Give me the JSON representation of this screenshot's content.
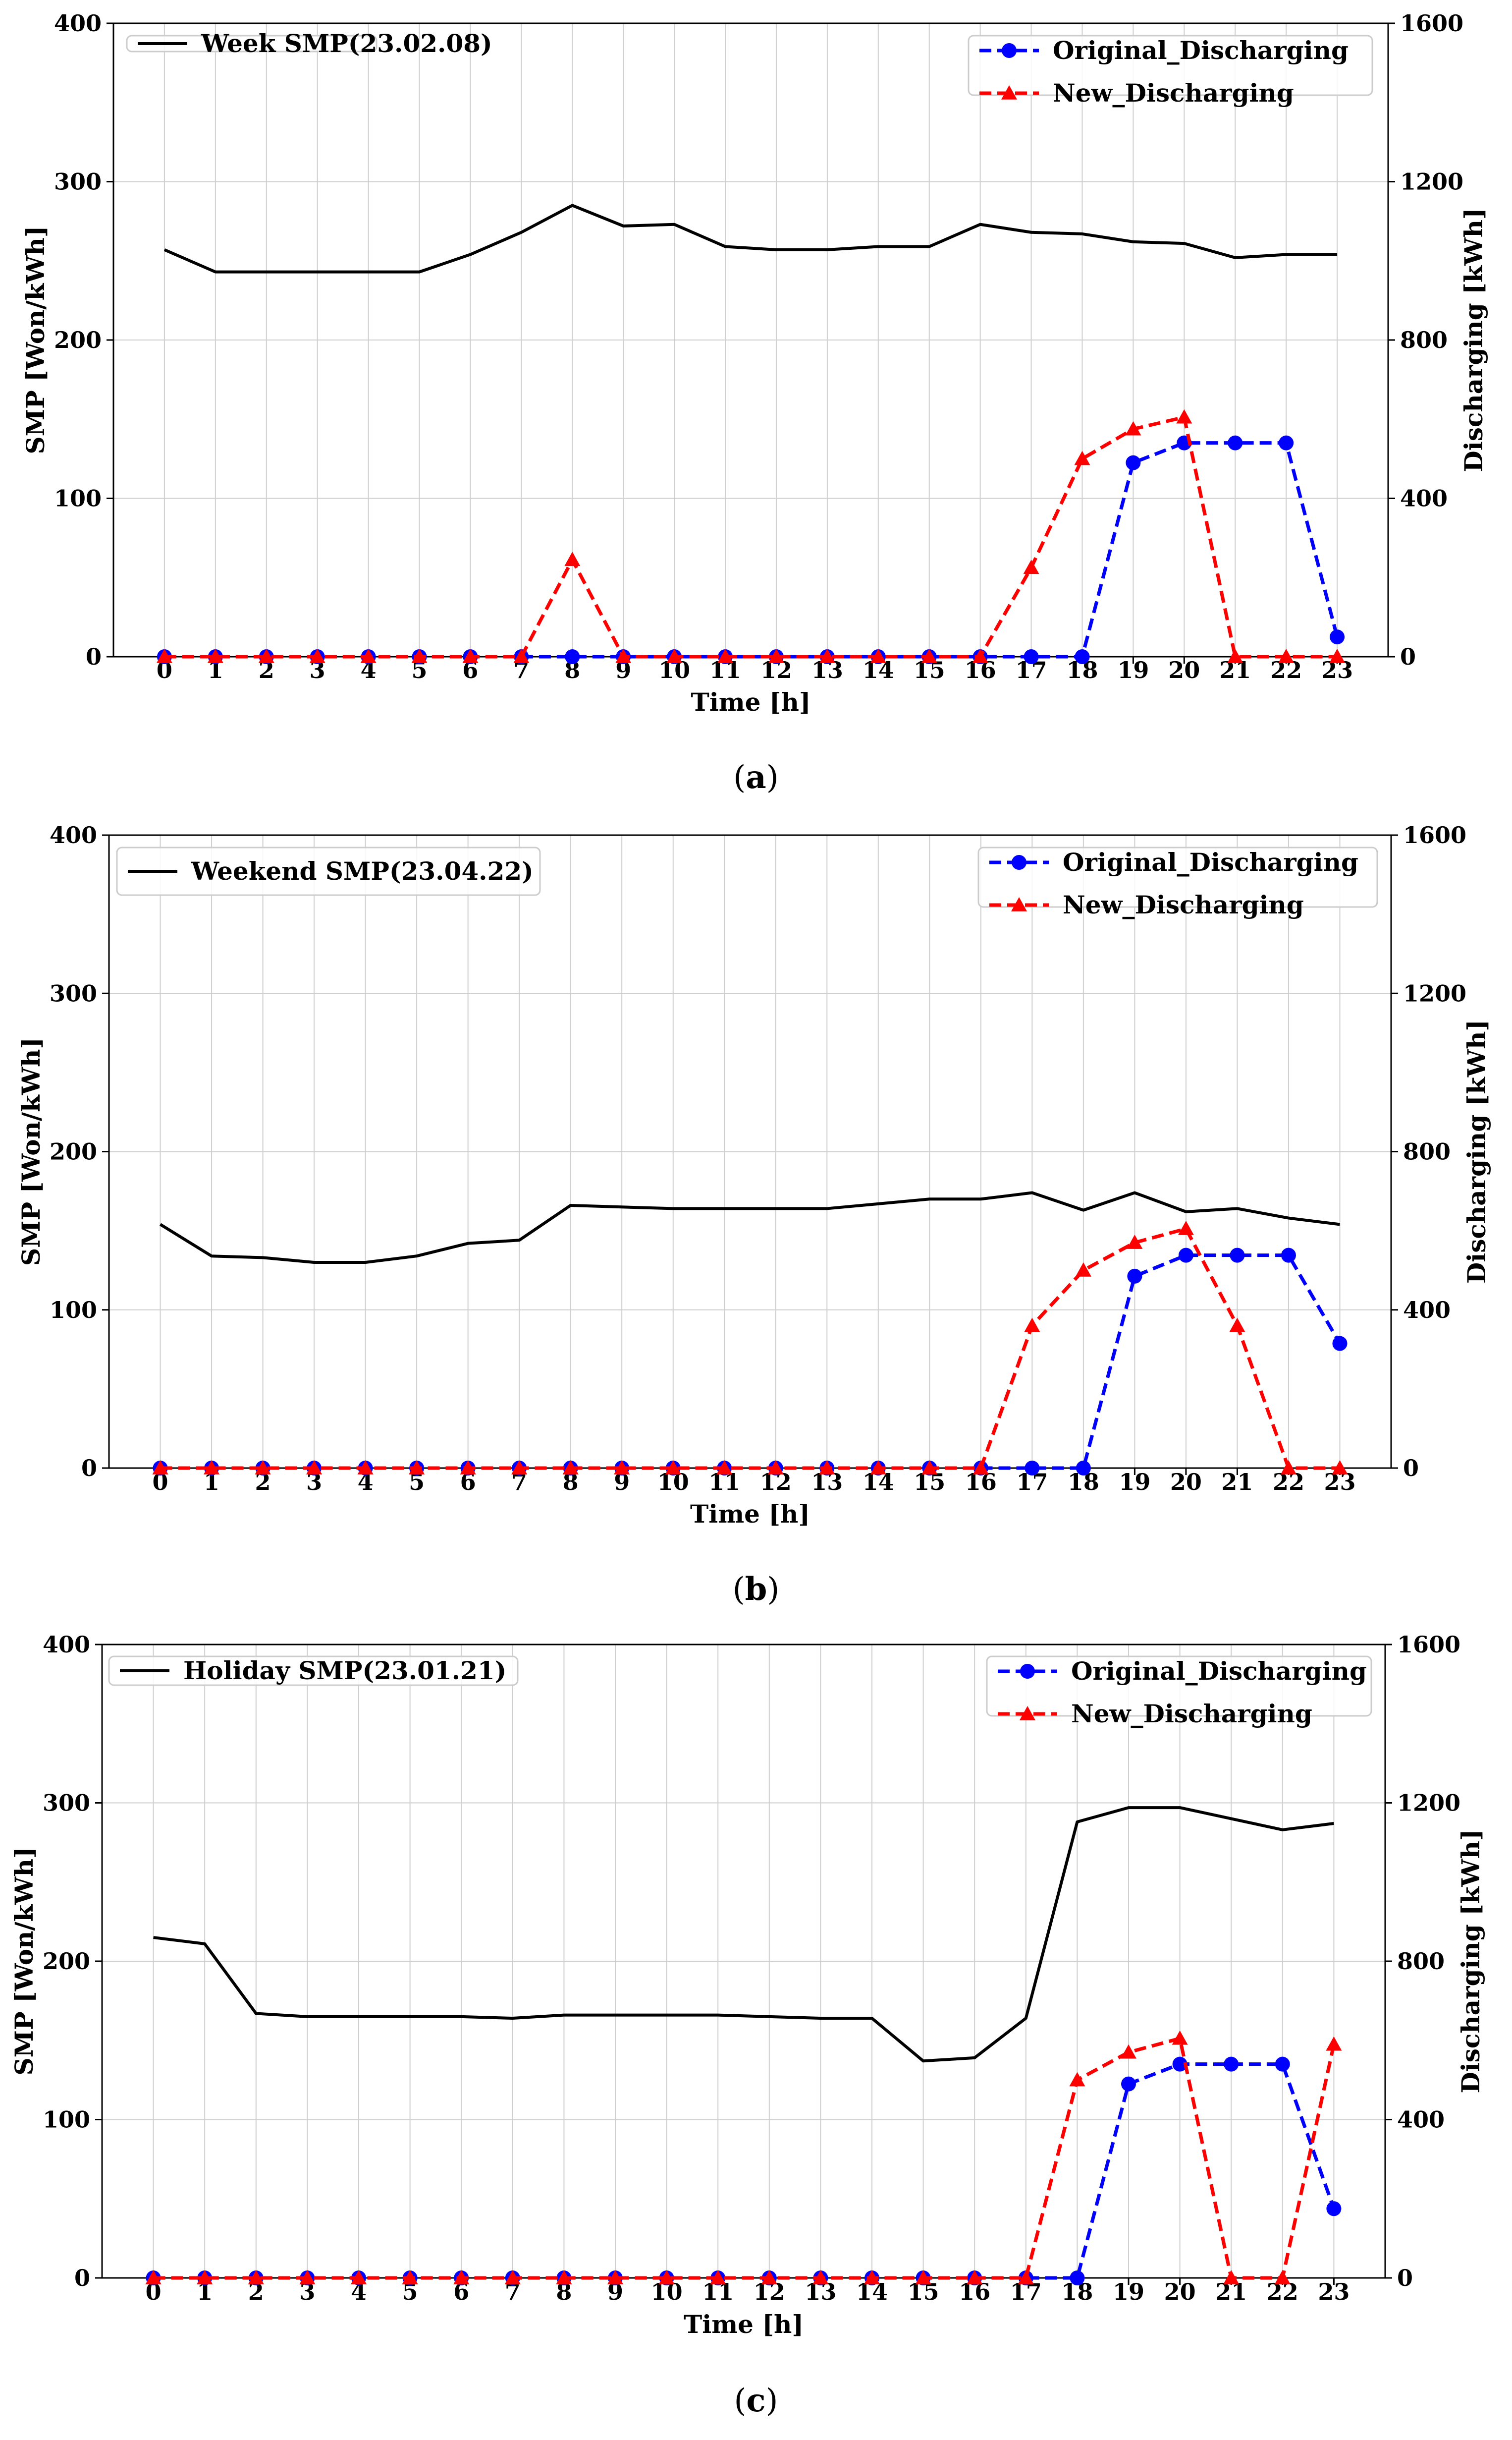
{
  "chart_data": [
    {
      "panel": "(a)",
      "caption_letter": "a",
      "type": "line",
      "x_label": "Time [h]",
      "y_label_left": "SMP [Won/kWh]",
      "y_label_right": "Discharging [kWh]",
      "y_left_range": [
        0,
        400
      ],
      "y_right_range": [
        0,
        1600
      ],
      "y_left_ticks": [
        "0",
        "100",
        "200",
        "300",
        "400"
      ],
      "y_right_ticks": [
        "0",
        "400",
        "800",
        "1200",
        "1600"
      ],
      "x_ticks": [
        "0",
        "1",
        "2",
        "3",
        "4",
        "5",
        "6",
        "7",
        "8",
        "9",
        "10",
        "11",
        "12",
        "13",
        "14",
        "15",
        "16",
        "17",
        "18",
        "19",
        "20",
        "21",
        "22",
        "23"
      ],
      "series": [
        {
          "name": "Week SMP(23.02.08)",
          "axis": "left",
          "color": "#000000",
          "style": "solid",
          "values": [
            257,
            243,
            243,
            243,
            243,
            243,
            254,
            268,
            285,
            272,
            273,
            259,
            257,
            257,
            259,
            259,
            273,
            268,
            267,
            262,
            261,
            252,
            254,
            254
          ]
        },
        {
          "name": "Original_Discharging",
          "axis": "right",
          "color": "#0000ff",
          "style": "dashed",
          "marker": "circle",
          "values": [
            0,
            0,
            0,
            0,
            0,
            0,
            0,
            0,
            0,
            0,
            0,
            0,
            0,
            0,
            0,
            0,
            0,
            0,
            0,
            490,
            540,
            540,
            540,
            50
          ]
        },
        {
          "name": "New_Discharging",
          "axis": "right",
          "color": "#ff0000",
          "style": "dashed",
          "marker": "triangle",
          "values": [
            0,
            0,
            0,
            0,
            0,
            0,
            0,
            0,
            245,
            0,
            0,
            0,
            0,
            0,
            0,
            0,
            0,
            225,
            500,
            575,
            605,
            0,
            0,
            0
          ]
        }
      ]
    },
    {
      "panel": "(b)",
      "caption_letter": "b",
      "type": "line",
      "x_label": "Time [h]",
      "y_label_left": "SMP [Won/kWh]",
      "y_label_right": "Discharging [kWh]",
      "y_left_range": [
        0,
        400
      ],
      "y_right_range": [
        0,
        1600
      ],
      "y_left_ticks": [
        "0",
        "100",
        "200",
        "300",
        "400"
      ],
      "y_right_ticks": [
        "0",
        "400",
        "800",
        "1200",
        "1600"
      ],
      "x_ticks": [
        "0",
        "1",
        "2",
        "3",
        "4",
        "5",
        "6",
        "7",
        "8",
        "9",
        "10",
        "11",
        "12",
        "13",
        "14",
        "15",
        "16",
        "17",
        "18",
        "19",
        "20",
        "21",
        "22",
        "23"
      ],
      "series": [
        {
          "name": "Weekend SMP(23.04.22)",
          "axis": "left",
          "color": "#000000",
          "style": "solid",
          "values": [
            154,
            134,
            133,
            130,
            130,
            134,
            142,
            144,
            166,
            165,
            164,
            164,
            164,
            164,
            167,
            170,
            170,
            174,
            163,
            174,
            162,
            164,
            158,
            154
          ]
        },
        {
          "name": "Original_Discharging",
          "axis": "right",
          "color": "#0000ff",
          "style": "dashed",
          "marker": "circle",
          "values": [
            0,
            0,
            0,
            0,
            0,
            0,
            0,
            0,
            0,
            0,
            0,
            0,
            0,
            0,
            0,
            0,
            0,
            0,
            0,
            485,
            538,
            538,
            538,
            315
          ]
        },
        {
          "name": "New_Discharging",
          "axis": "right",
          "color": "#ff0000",
          "style": "dashed",
          "marker": "triangle",
          "values": [
            0,
            0,
            0,
            0,
            0,
            0,
            0,
            0,
            0,
            0,
            0,
            0,
            0,
            0,
            0,
            0,
            0,
            360,
            500,
            570,
            605,
            360,
            0,
            0
          ]
        }
      ]
    },
    {
      "panel": "(c)",
      "caption_letter": "c",
      "type": "line",
      "x_label": "Time [h]",
      "y_label_left": "SMP [Won/kWh]",
      "y_label_right": "Discharging [kWh]",
      "y_left_range": [
        0,
        400
      ],
      "y_right_range": [
        0,
        1600
      ],
      "y_left_ticks": [
        "0",
        "100",
        "200",
        "300",
        "400"
      ],
      "y_right_ticks": [
        "0",
        "400",
        "800",
        "1200",
        "1600"
      ],
      "x_ticks": [
        "0",
        "1",
        "2",
        "3",
        "4",
        "5",
        "6",
        "7",
        "8",
        "9",
        "10",
        "11",
        "12",
        "13",
        "14",
        "15",
        "16",
        "17",
        "18",
        "19",
        "20",
        "21",
        "22",
        "23"
      ],
      "series": [
        {
          "name": "Holiday SMP(23.01.21)",
          "axis": "left",
          "color": "#000000",
          "style": "solid",
          "values": [
            215,
            211,
            167,
            165,
            165,
            165,
            165,
            164,
            166,
            166,
            166,
            166,
            165,
            164,
            164,
            137,
            139,
            164,
            288,
            297,
            297,
            290,
            283,
            287
          ]
        },
        {
          "name": "Original_Discharging",
          "axis": "right",
          "color": "#0000ff",
          "style": "dashed",
          "marker": "circle",
          "values": [
            0,
            0,
            0,
            0,
            0,
            0,
            0,
            0,
            0,
            0,
            0,
            0,
            0,
            0,
            0,
            0,
            0,
            0,
            0,
            490,
            540,
            540,
            540,
            175
          ]
        },
        {
          "name": "New_Discharging",
          "axis": "right",
          "color": "#ff0000",
          "style": "dashed",
          "marker": "triangle",
          "values": [
            0,
            0,
            0,
            0,
            0,
            0,
            0,
            0,
            0,
            0,
            0,
            0,
            0,
            0,
            0,
            0,
            0,
            0,
            500,
            570,
            605,
            0,
            0,
            590
          ]
        }
      ]
    }
  ]
}
